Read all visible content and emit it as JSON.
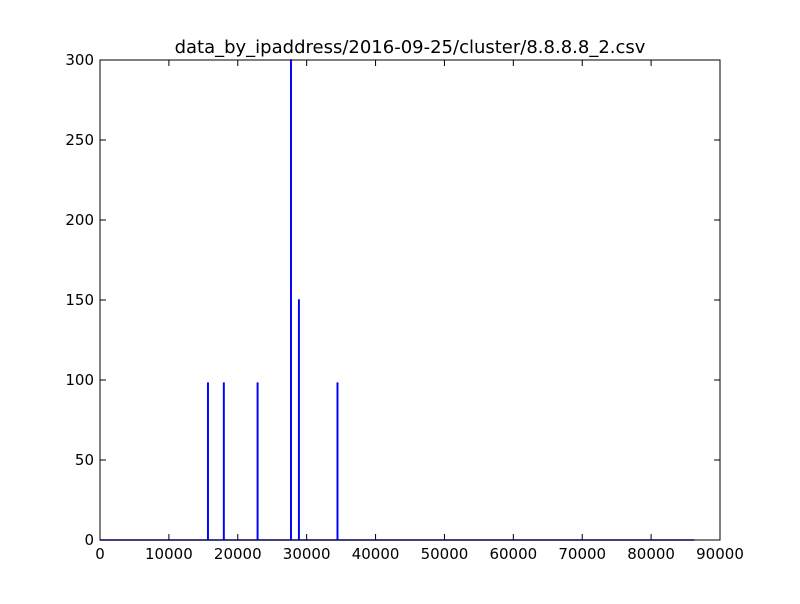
{
  "chart_data": {
    "type": "line",
    "title": "data_by_ipaddress/2016-09-25/cluster/8.8.8.8_2.csv",
    "xlabel": "",
    "ylabel": "",
    "xlim": [
      0,
      90000
    ],
    "ylim": [
      0,
      300
    ],
    "xticks": [
      0,
      10000,
      20000,
      30000,
      40000,
      50000,
      60000,
      70000,
      80000,
      90000
    ],
    "xtick_labels": [
      "0",
      "10000",
      "20000",
      "30000",
      "40000",
      "50000",
      "60000",
      "70000",
      "80000",
      "90000"
    ],
    "yticks": [
      0,
      50,
      100,
      150,
      200,
      250,
      300
    ],
    "ytick_labels": [
      "0",
      "50",
      "100",
      "150",
      "200",
      "250",
      "300"
    ],
    "grid": false,
    "legend": "none",
    "series": [
      {
        "color": "#0000ff",
        "x": [
          0,
          15650,
          15650,
          15700,
          15700,
          17950,
          17950,
          18000,
          18000,
          22850,
          22850,
          22900,
          22900,
          27700,
          27700,
          27750,
          27750,
          28850,
          28850,
          28900,
          28900,
          34450,
          34450,
          34500,
          34500,
          86300
        ],
        "y": [
          0,
          0,
          98,
          98,
          0,
          0,
          98,
          98,
          0,
          0,
          98,
          98,
          0,
          0,
          300,
          300,
          0,
          0,
          150,
          150,
          0,
          0,
          98,
          98,
          0,
          0
        ]
      }
    ]
  }
}
